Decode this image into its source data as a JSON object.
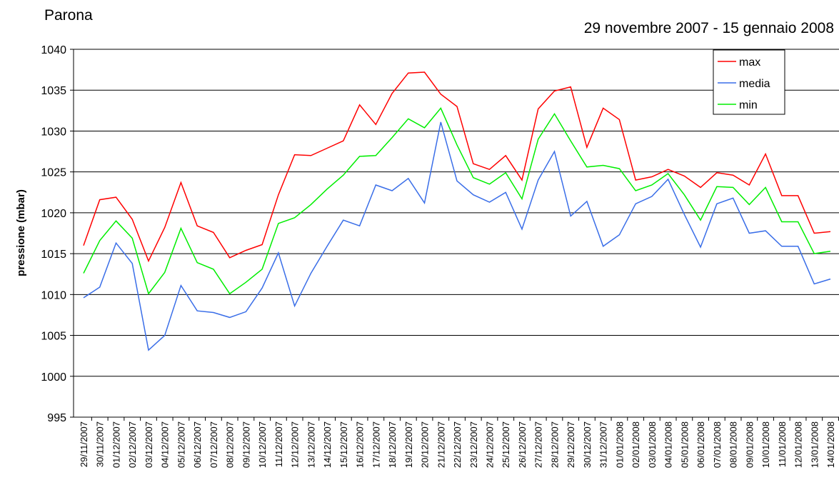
{
  "chart_data": {
    "type": "line",
    "title": "Parona",
    "subtitle": "29 novembre 2007 - 15 gennaio 2008",
    "y_label": "pressione (mbar)",
    "categories": [
      "29/11/2007",
      "30/11/2007",
      "01/12/2007",
      "02/12/2007",
      "03/12/2007",
      "04/12/2007",
      "05/12/2007",
      "06/12/2007",
      "07/12/2007",
      "08/12/2007",
      "09/12/2007",
      "10/12/2007",
      "11/12/2007",
      "12/12/2007",
      "13/12/2007",
      "14/12/2007",
      "15/12/2007",
      "16/12/2007",
      "17/12/2007",
      "18/12/2007",
      "19/12/2007",
      "20/12/2007",
      "21/12/2007",
      "22/12/2007",
      "23/12/2007",
      "24/12/2007",
      "25/12/2007",
      "26/12/2007",
      "27/12/2007",
      "28/12/2007",
      "29/12/2007",
      "30/12/2007",
      "31/12/2007",
      "01/01/2008",
      "02/01/2008",
      "03/01/2008",
      "04/01/2008",
      "05/01/2008",
      "06/01/2008",
      "07/01/2008",
      "08/01/2008",
      "09/01/2008",
      "10/01/2008",
      "11/01/2008",
      "12/01/2008",
      "13/01/2008",
      "14/01/2008"
    ],
    "series": [
      {
        "name": "max",
        "color": "#ff0000",
        "values": [
          1016,
          1021.6,
          1021.9,
          1019.2,
          1014.1,
          1018.2,
          1023.7,
          1018.4,
          1017.6,
          1014.5,
          1015.4,
          1016.1,
          1022.2,
          1027.1,
          1027,
          1027.9,
          1028.8,
          1033.2,
          1030.8,
          1034.6,
          1037.1,
          1037.2,
          1034.5,
          1033,
          1026,
          1025.3,
          1027,
          1024,
          1032.7,
          1034.9,
          1035.4,
          1028,
          1032.8,
          1031.4,
          1024,
          1024.4,
          1025.3,
          1024.5,
          1023.1,
          1024.9,
          1024.6,
          1023.4,
          1027.2,
          1022.1,
          1022.1,
          1017.5,
          1017.7
        ]
      },
      {
        "name": "media",
        "color": "#3a6ee8",
        "values": [
          1009.6,
          1010.9,
          1016.3,
          1013.8,
          1003.2,
          1005,
          1011.1,
          1008,
          1007.8,
          1007.2,
          1007.9,
          1010.8,
          1015.1,
          1008.6,
          1012.6,
          1015.9,
          1019.1,
          1018.4,
          1023.4,
          1022.7,
          1024.2,
          1021.2,
          1031.1,
          1023.9,
          1022.2,
          1021.3,
          1022.5,
          1018,
          1024,
          1027.5,
          1019.6,
          1021.4,
          1015.9,
          1017.3,
          1021.1,
          1022,
          1024.1,
          1019.8,
          1015.8,
          1021.1,
          1021.8,
          1017.5,
          1017.8,
          1015.9,
          1015.9,
          1011.3,
          1011.9
        ]
      },
      {
        "name": "min",
        "color": "#00ee00",
        "values": [
          1012.6,
          1016.6,
          1019,
          1016.9,
          1010.1,
          1012.7,
          1018.1,
          1013.9,
          1013.1,
          1010.1,
          1011.5,
          1013.1,
          1018.7,
          1019.4,
          1021,
          1022.9,
          1024.6,
          1026.9,
          1027,
          1029.2,
          1031.5,
          1030.4,
          1032.8,
          1028.3,
          1024.3,
          1023.5,
          1024.9,
          1021.7,
          1029,
          1032.1,
          1028.8,
          1025.6,
          1025.8,
          1025.4,
          1022.7,
          1023.4,
          1024.8,
          1022.2,
          1019.1,
          1023.2,
          1023.1,
          1021,
          1023.1,
          1018.9,
          1018.9,
          1015,
          1015.3
        ]
      }
    ],
    "ylim": [
      995,
      1040
    ],
    "yticks": [
      995,
      1000,
      1005,
      1010,
      1015,
      1020,
      1025,
      1030,
      1035,
      1040
    ],
    "grid": true,
    "legend": "top-right"
  }
}
